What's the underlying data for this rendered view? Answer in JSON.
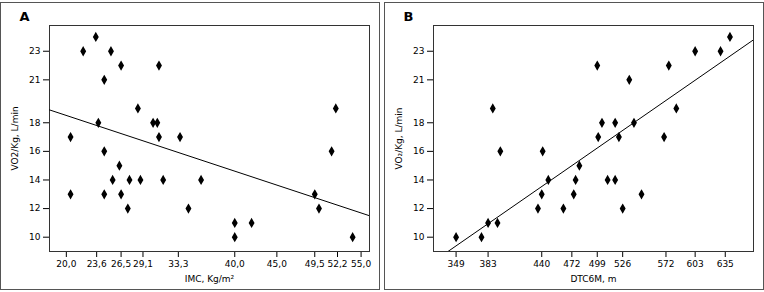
{
  "chart_data": [
    {
      "type": "scatter",
      "title": "A",
      "x_label": "IMC, Kg/m²",
      "y_label": "VO2/Kg, L/min",
      "color": "#000000",
      "marker": "diamond",
      "x": [
        20.5,
        20.5,
        22.0,
        23.5,
        23.8,
        24.5,
        24.5,
        24.5,
        25.3,
        25.5,
        26.3,
        26.5,
        26.5,
        27.3,
        27.5,
        28.5,
        28.8,
        30.3,
        30.8,
        31.0,
        31.0,
        31.5,
        33.5,
        34.5,
        36.0,
        40.0,
        40.0,
        42.0,
        49.5,
        50.0,
        51.5,
        52.0,
        54.0
      ],
      "values": [
        17,
        13,
        23,
        24,
        18,
        21,
        16,
        13,
        23,
        14,
        15,
        22,
        13,
        12,
        14,
        19,
        14,
        18,
        18,
        22,
        17,
        14,
        17,
        12,
        14,
        11,
        10,
        11,
        13,
        12,
        16,
        19,
        10
      ],
      "trendline": {
        "x": [
          18,
          56
        ],
        "values": [
          18.9,
          11.5
        ]
      },
      "xlim": [
        18,
        56
      ],
      "xticks": [
        {
          "value": 20,
          "label": "20,0"
        },
        {
          "value": 23.6,
          "label": "23,6"
        },
        {
          "value": 26.5,
          "label": "26,5"
        },
        {
          "value": 29.1,
          "label": "29,1"
        },
        {
          "value": 33.3,
          "label": "33,3"
        },
        {
          "value": 40,
          "label": "40,0"
        },
        {
          "value": 45,
          "label": "45,0"
        },
        {
          "value": 49.5,
          "label": "49,5"
        },
        {
          "value": 52.2,
          "label": "52,2"
        },
        {
          "value": 55,
          "label": "55,0"
        }
      ],
      "ylim": [
        9,
        24.8
      ],
      "yticks": [
        10,
        12,
        14,
        16,
        18,
        21,
        23
      ],
      "grid": false
    },
    {
      "type": "scatter",
      "title": "B",
      "x_label": "DTC6M, m",
      "y_label": "VO₂/Kg, L/min",
      "color": "#000000",
      "marker": "diamond",
      "x": [
        349,
        376,
        383,
        393,
        388,
        396,
        436,
        441,
        440,
        447,
        463,
        474,
        476,
        480,
        499,
        500,
        504,
        510,
        518,
        518,
        522,
        526,
        533,
        538,
        546,
        570,
        575,
        583,
        603,
        630,
        640
      ],
      "values": [
        10,
        10,
        11,
        11,
        19,
        16,
        12,
        16,
        13,
        14,
        12,
        13,
        14,
        15,
        22,
        17,
        18,
        14,
        18,
        14,
        17,
        12,
        21,
        18,
        13,
        17,
        22,
        19,
        23,
        23,
        24
      ],
      "trendline": {
        "x": [
          325,
          665
        ],
        "values": [
          8.3,
          23.8
        ]
      },
      "xlim": [
        325,
        665
      ],
      "xticks": [
        349,
        383,
        440,
        472,
        499,
        526,
        572,
        603,
        635
      ],
      "ylim": [
        9,
        24.8
      ],
      "yticks": [
        10,
        12,
        14,
        16,
        18,
        21,
        23
      ],
      "grid": false
    }
  ]
}
